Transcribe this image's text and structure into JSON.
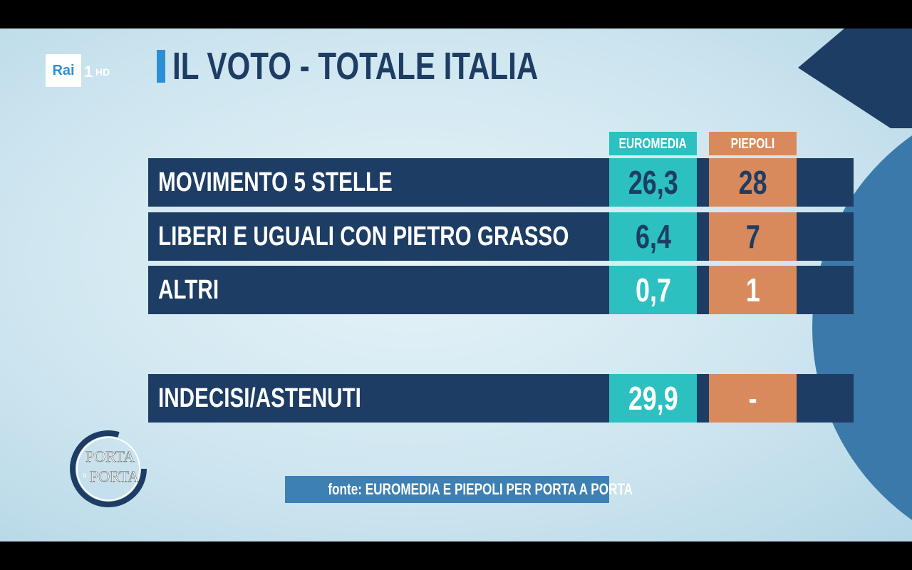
{
  "channel_logo": {
    "brand": "Rai",
    "channel": "1",
    "quality": "HD"
  },
  "title": "IL VOTO - TOTALE ITALIA",
  "table": {
    "columns": [
      "EUROMEDIA",
      "PIEPOLI"
    ],
    "rows": [
      {
        "label": "MOVIMENTO 5 STELLE",
        "euromedia": "26,3",
        "piepoli": "28"
      },
      {
        "label": "LIBERI E UGUALI CON PIETRO GRASSO",
        "euromedia": "6,4",
        "piepoli": "7"
      },
      {
        "label": "ALTRI",
        "euromedia": "0,7",
        "piepoli": "1"
      },
      {
        "label": "INDECISI/ASTENUTI",
        "euromedia": "29,9",
        "piepoli": "-"
      }
    ]
  },
  "show_logo": {
    "line1": "PORTA",
    "line2": "a",
    "line3": "PORTA"
  },
  "source": "fonte: EUROMEDIA E PIEPOLI PER PORTA A PORTA"
}
